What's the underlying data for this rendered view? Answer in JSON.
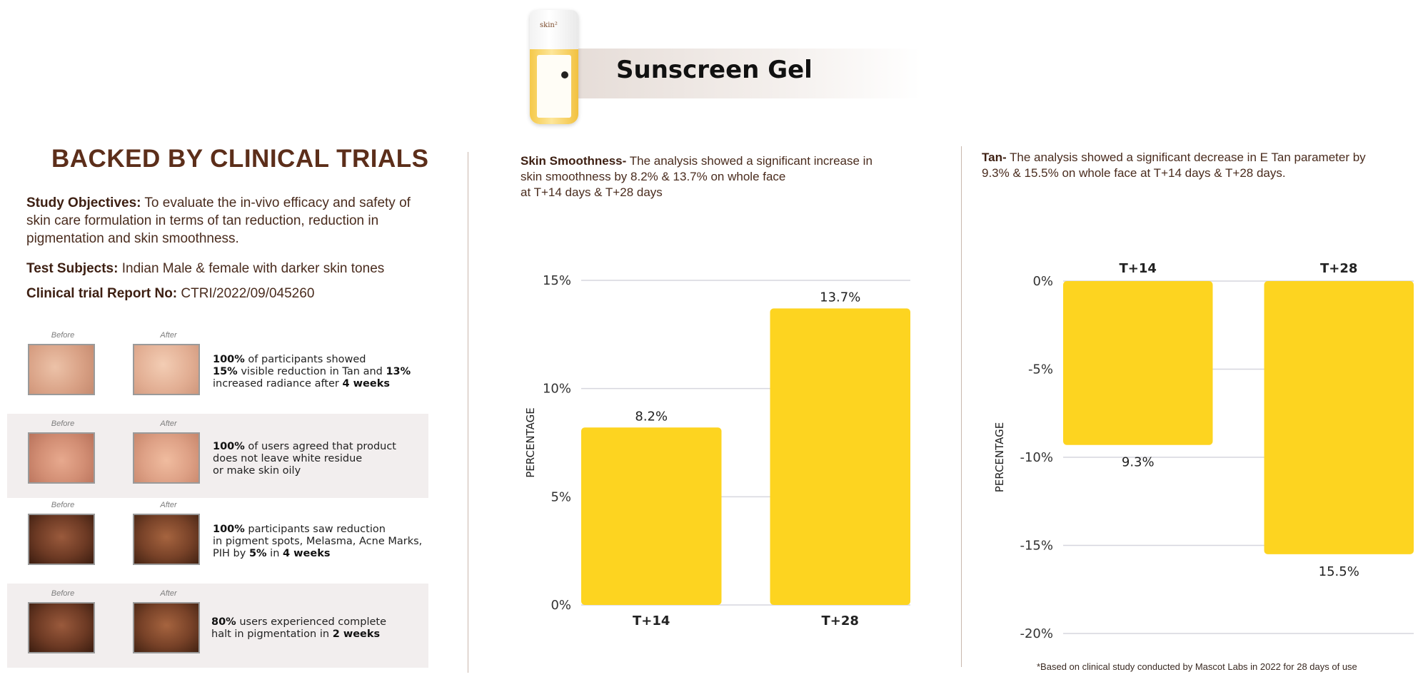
{
  "header": {
    "product_title": "Sunscreen Gel",
    "bottle_logo": "skin²"
  },
  "left": {
    "title": "BACKED BY CLINICAL TRIALS",
    "objectives_label": "Study Objectives:",
    "objectives_text": " To evaluate the in-vivo efficacy and safety of skin care formulation in terms of tan reduction, reduction in pigmentation and skin smoothness.",
    "subjects_label": "Test Subjects:",
    "subjects_text": " Indian Male & female with darker skin tones",
    "report_label": "Clinical trial Report No:",
    "report_text": " CTRI/2022/09/045260",
    "before_label": "Before",
    "after_label": "After",
    "rows": [
      {
        "line1_bold": "100%",
        "line1": " of participants showed",
        "line2_bold": "15%",
        "line2": " visible reduction in Tan and ",
        "line2_bold2": "13%",
        "line3": "increased radiance after ",
        "line3_bold": "4 weeks"
      },
      {
        "line1_bold": "100%",
        "line1": " of users agreed that product",
        "line2": "does not leave white residue",
        "line3": "or make skin oily"
      },
      {
        "line1_bold": "100%",
        "line1": " participants saw reduction",
        "line2": "in pigment spots, Melasma, Acne Marks,",
        "line3": "PIH by ",
        "line3_bold": "5%",
        "line3b": " in ",
        "line3_bold2": "4 weeks"
      },
      {
        "line1_bold": "80%",
        "line1": " users experienced complete",
        "line2": "halt in pigmentation in ",
        "line2_bold": "2 weeks"
      }
    ]
  },
  "smooth": {
    "desc_bold": "Skin Smoothness-",
    "desc_1": " The analysis showed a significant increase in",
    "desc_2": "skin smoothness by 8.2% & 13.7% on whole face",
    "desc_3": "at T+14 days & T+28 days"
  },
  "tan": {
    "desc_bold": "Tan-",
    "desc_1": " The analysis showed a significant decrease in E Tan parameter by",
    "desc_2": "9.3% & 15.5% on whole face at T+14 days & T+28 days."
  },
  "footnote": "*Based on clinical study conducted by Mascot Labs in 2022 for 28 days of use",
  "colors": {
    "bar": "#fdd420",
    "title": "#5c2e1a",
    "text": "#4a2c1e"
  },
  "chart_data": [
    {
      "type": "bar",
      "categories": [
        "T+14",
        "T+28"
      ],
      "values": [
        8.2,
        13.7
      ],
      "value_labels": [
        "8.2%",
        "13.7%"
      ],
      "ylabel": "PERCENTAGE",
      "ylim": [
        0,
        15
      ],
      "yticks": [
        0,
        5,
        10,
        15
      ],
      "ytick_labels": [
        "0%",
        "5%",
        "10%",
        "15%"
      ],
      "grid": true
    },
    {
      "type": "bar",
      "categories": [
        "T+14",
        "T+28"
      ],
      "values": [
        -9.3,
        -15.5
      ],
      "value_labels": [
        "9.3%",
        "15.5%"
      ],
      "ylabel": "PERCENTAGE",
      "ylim": [
        -20,
        0
      ],
      "yticks": [
        0,
        -5,
        -10,
        -15,
        -20
      ],
      "ytick_labels": [
        "0%",
        "-5%",
        "-10%",
        "-15%",
        "-20%"
      ],
      "grid": true
    }
  ]
}
